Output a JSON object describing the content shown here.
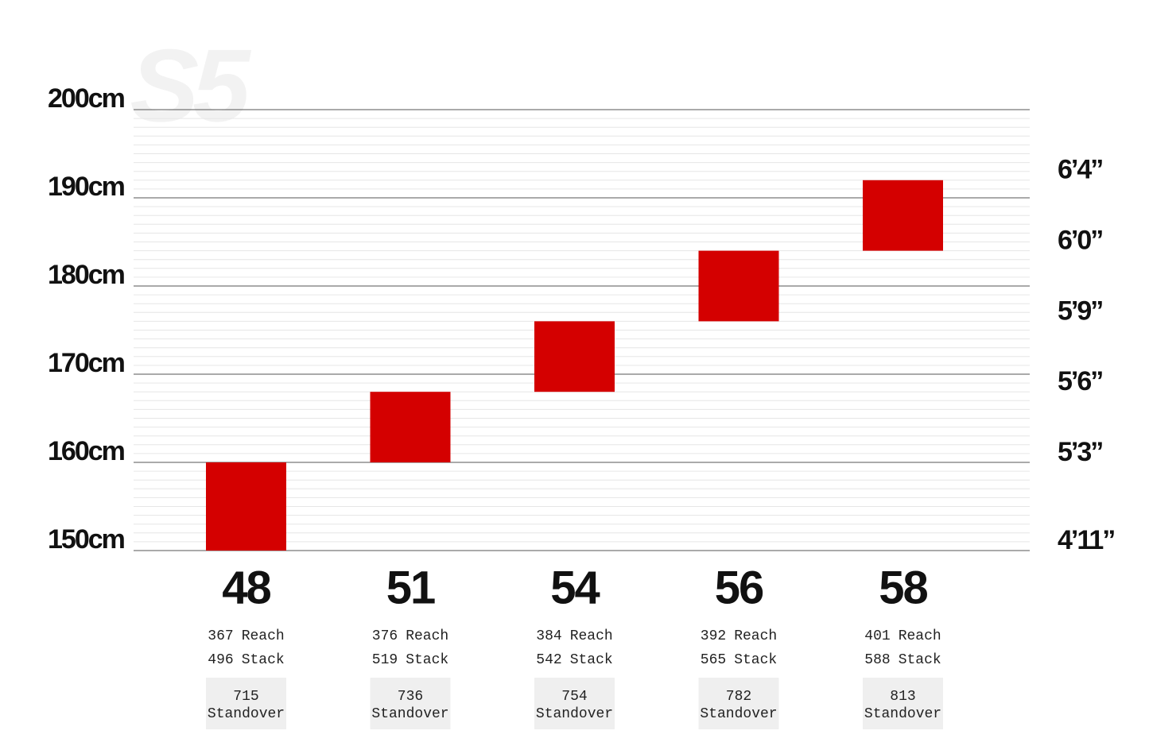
{
  "chart_data": {
    "type": "range_bar",
    "watermark": "S5",
    "categories": [
      "48",
      "51",
      "54",
      "56",
      "58"
    ],
    "low": [
      150,
      160,
      168,
      176,
      184
    ],
    "high": [
      160,
      168,
      176,
      184,
      192
    ],
    "color": "#d40000",
    "ylim": [
      150,
      200
    ],
    "yticks": [
      {
        "value": 150,
        "label": "150cm"
      },
      {
        "value": 160,
        "label": "160cm"
      },
      {
        "value": 170,
        "label": "170cm"
      },
      {
        "value": 180,
        "label": "180cm"
      },
      {
        "value": 190,
        "label": "190cm"
      },
      {
        "value": 200,
        "label": "200cm"
      }
    ],
    "y2lim": [
      150,
      200
    ],
    "y2ticks": [
      {
        "value": 151,
        "label": "4’11”"
      },
      {
        "value": 161,
        "label": "5’3”"
      },
      {
        "value": 169,
        "label": "5’6”"
      },
      {
        "value": 177,
        "label": "5’9”"
      },
      {
        "value": 185,
        "label": "6’0”"
      },
      {
        "value": 193,
        "label": "6’4”"
      }
    ],
    "grid": true,
    "minor_grid": true,
    "reach": [
      367,
      376,
      384,
      392,
      401
    ],
    "reach_label": "Reach",
    "stack": [
      496,
      519,
      542,
      565,
      588
    ],
    "stack_label": "Stack",
    "standover": [
      715,
      736,
      754,
      782,
      813
    ],
    "standover_label": "Standover"
  }
}
